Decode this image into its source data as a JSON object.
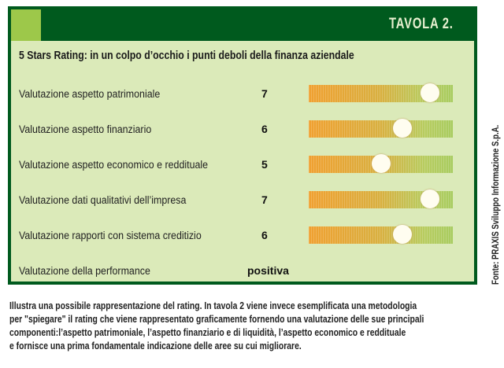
{
  "header": {
    "tavola": "TAVOLA 2."
  },
  "chart_data": {
    "type": "table",
    "title": "5 Stars Rating: in un colpo d’occhio i punti deboli della finanza aziendale",
    "scale_max": 8,
    "rows": [
      {
        "label": "Valutazione aspetto patrimoniale",
        "value": 7,
        "position": 0.84
      },
      {
        "label": "Valutazione aspetto finanziario",
        "value": 6,
        "position": 0.65
      },
      {
        "label": "Valutazione aspetto economico e reddituale",
        "value": 5,
        "position": 0.5
      },
      {
        "label": "Valutazione dati qualitativi dell’impresa",
        "value": 7,
        "position": 0.84
      },
      {
        "label": "Valutazione rapporti con sistema creditizio",
        "value": 6,
        "position": 0.65
      }
    ],
    "performance": {
      "label": "Valutazione della performance",
      "value": "positiva"
    }
  },
  "credit": "Fonte: PRAXIS Sviluppo Informazione S.p.A.",
  "caption": [
    "Illustra una possibile rappresentazione del rating. In tavola 2 viene invece esemplificata una metodologia",
    "per \"spiegare\" il rating che viene rappresentato graficamente fornendo una valutazione delle sue principali",
    "componenti:l’aspetto patrimoniale, l’aspetto finanziario e di liquidità, l’aspetto economico e reddituale",
    "e fornisce una prima fondamentale indicazione delle aree su cui migliorare."
  ]
}
